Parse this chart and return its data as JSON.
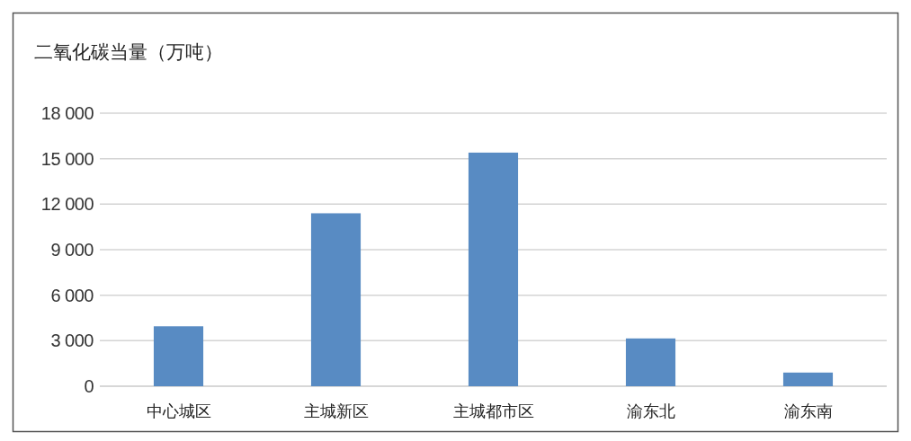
{
  "chart_data": {
    "type": "bar",
    "title": "二氧化碳当量（万吨）",
    "categories": [
      "中心城区",
      "主城新区",
      "主城都市区",
      "渝东北",
      "渝东南"
    ],
    "values": [
      3950,
      11400,
      15400,
      3150,
      900
    ],
    "color": "#588bc3",
    "ylim": [
      0,
      18000
    ],
    "yticks": [
      0,
      {
        "value": 3000,
        "label": "3 000"
      },
      {
        "value": 6000,
        "label": "6 000"
      },
      {
        "value": 9000,
        "label": "9 000"
      },
      {
        "value": 12000,
        "label": "12 000"
      },
      {
        "value": 15000,
        "label": "15 000"
      },
      {
        "value": 18000,
        "label": "18 000"
      }
    ],
    "grid": "y"
  }
}
